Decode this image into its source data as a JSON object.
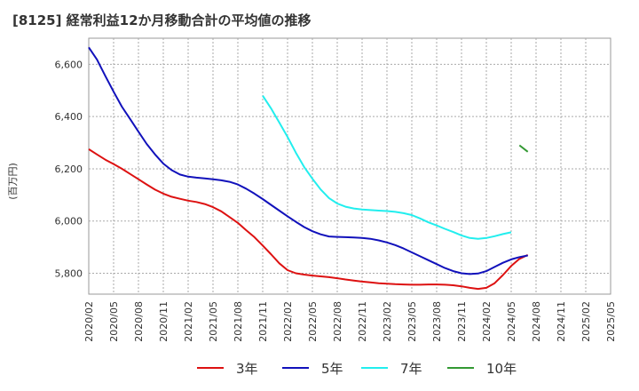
{
  "title": "[8125]  経常利益12か月移動合計の平均値の推移",
  "chart_data": {
    "type": "line",
    "title": "[8125]  経常利益12か月移動合計の平均値の推移",
    "xlabel": "",
    "ylabel": "(百万円)",
    "x_ticks": [
      "2020/02",
      "2020/05",
      "2020/08",
      "2020/11",
      "2021/02",
      "2021/05",
      "2021/08",
      "2021/11",
      "2022/02",
      "2022/05",
      "2022/08",
      "2022/11",
      "2023/02",
      "2023/05",
      "2023/08",
      "2023/11",
      "2024/02",
      "2024/05",
      "2024/08",
      "2024/11",
      "2025/02",
      "2025/05"
    ],
    "y_ticks": [
      "5,800",
      "6,000",
      "6,200",
      "6,400",
      "6,600"
    ],
    "y_tick_values": [
      5800,
      6000,
      6200,
      6400,
      6600
    ],
    "ylim": [
      5720,
      6700
    ],
    "grid": true,
    "legend_position": "bottom",
    "series": [
      {
        "name": "3年",
        "color": "#dd1111",
        "start_index": 0,
        "values": [
          6275,
          6255,
          6235,
          6218,
          6200,
          6180,
          6160,
          6140,
          6120,
          6105,
          6093,
          6085,
          6078,
          6073,
          6065,
          6053,
          6037,
          6015,
          5993,
          5965,
          5938,
          5906,
          5873,
          5838,
          5812,
          5800,
          5795,
          5791,
          5788,
          5785,
          5781,
          5776,
          5772,
          5768,
          5765,
          5762,
          5760,
          5758,
          5757,
          5756,
          5756,
          5757,
          5757,
          5756,
          5754,
          5750,
          5744,
          5740,
          5744,
          5762,
          5793,
          5828,
          5855,
          5870
        ]
      },
      {
        "name": "5年",
        "color": "#1111bb",
        "start_index": 0,
        "values": [
          6665,
          6618,
          6555,
          6495,
          6438,
          6390,
          6342,
          6295,
          6255,
          6220,
          6195,
          6178,
          6170,
          6166,
          6163,
          6160,
          6156,
          6150,
          6140,
          6124,
          6105,
          6084,
          6062,
          6040,
          6018,
          5997,
          5977,
          5961,
          5949,
          5941,
          5939,
          5938,
          5937,
          5935,
          5932,
          5926,
          5918,
          5908,
          5895,
          5880,
          5865,
          5850,
          5835,
          5820,
          5808,
          5800,
          5797,
          5799,
          5808,
          5824,
          5840,
          5853,
          5862,
          5868
        ]
      },
      {
        "name": "7年",
        "color": "#22eeee",
        "start_index": 21,
        "values": [
          6480,
          6432,
          6377,
          6322,
          6262,
          6207,
          6162,
          6121,
          6088,
          6067,
          6055,
          6048,
          6044,
          6042,
          6040,
          6038,
          6035,
          6030,
          6023,
          6010,
          5995,
          5983,
          5970,
          5958,
          5945,
          5935,
          5932,
          5935,
          5942,
          5950,
          5957
        ]
      },
      {
        "name": "10年",
        "color": "#339933",
        "start_index": 52,
        "values": [
          6290,
          6265
        ]
      }
    ]
  }
}
